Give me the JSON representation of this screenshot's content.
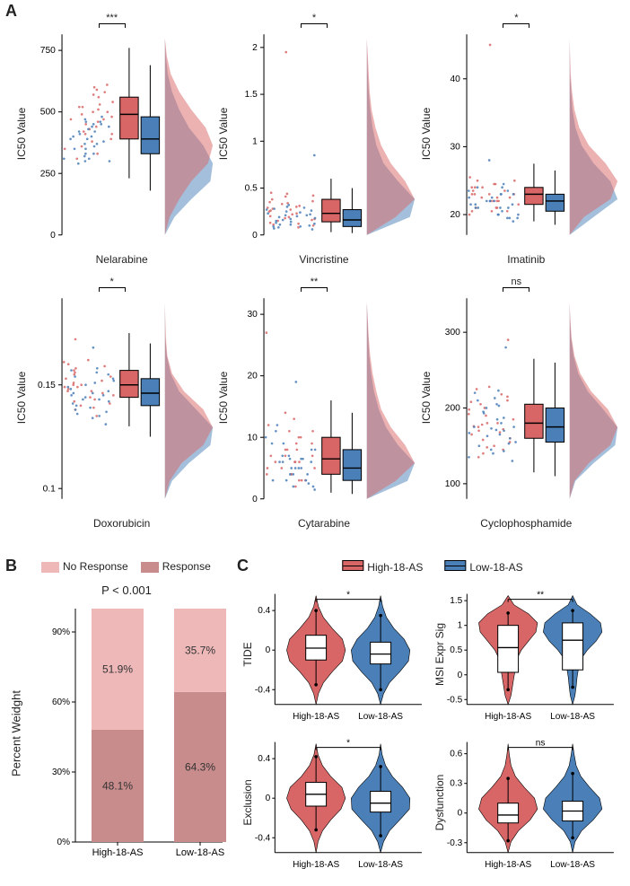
{
  "colors": {
    "red": "#d96666",
    "blue": "#4a7fb8",
    "lightred": "#eeb8b8",
    "darkred": "#c98c8c"
  },
  "panelA": {
    "label": "A",
    "ylabel": "IC50 Value",
    "drugs": [
      {
        "name": "Nelarabine",
        "sig": "***",
        "yticks": [
          0,
          250,
          500,
          750
        ],
        "ymax": 800,
        "high": {
          "q1": 390,
          "med": 490,
          "q3": 560,
          "lo": 230,
          "hi": 760
        },
        "low": {
          "q1": 330,
          "med": 390,
          "q3": 480,
          "lo": 180,
          "hi": 690
        },
        "jitter_high": [
          520,
          470,
          610,
          430,
          380,
          560,
          500,
          410,
          590,
          350,
          480,
          540,
          310,
          450,
          530,
          600,
          420,
          470,
          510,
          390,
          330,
          570,
          440,
          500,
          460,
          360,
          580,
          410,
          490,
          520
        ],
        "jitter_low": [
          400,
          350,
          450,
          300,
          420,
          370,
          480,
          310,
          390,
          440,
          330,
          460,
          290,
          410,
          360,
          470,
          320,
          430,
          380,
          450,
          300,
          400,
          350,
          420,
          370,
          460,
          310,
          390,
          440,
          330
        ],
        "density_high": [
          0,
          0.1,
          0.3,
          0.55,
          0.9,
          1.0,
          0.85,
          0.55,
          0.3,
          0.12,
          0.04,
          0
        ],
        "density_low": [
          0,
          0.2,
          0.55,
          0.95,
          1.0,
          0.8,
          0.5,
          0.3,
          0.15,
          0.06,
          0.02,
          0
        ]
      },
      {
        "name": "Vincristine",
        "sig": "*",
        "yticks": [
          0,
          0.5,
          1.0,
          1.5,
          2.0
        ],
        "ymax": 2.1,
        "high": {
          "q1": 0.14,
          "med": 0.23,
          "q3": 0.38,
          "lo": 0.03,
          "hi": 0.6
        },
        "low": {
          "q1": 0.09,
          "med": 0.16,
          "q3": 0.27,
          "lo": 0.02,
          "hi": 0.5
        },
        "jitter_high": [
          0.25,
          0.19,
          0.33,
          0.12,
          0.41,
          0.27,
          0.17,
          0.35,
          0.1,
          0.3,
          0.22,
          0.44,
          0.15,
          0.29,
          0.38,
          0.08,
          0.26,
          0.2,
          0.34,
          0.13,
          0.42,
          0.28,
          0.18,
          0.36,
          0.11,
          0.31,
          0.23,
          0.45,
          0.16,
          1.95
        ],
        "jitter_low": [
          0.18,
          0.11,
          0.24,
          0.07,
          0.29,
          0.15,
          0.21,
          0.09,
          0.26,
          0.13,
          0.19,
          0.32,
          0.06,
          0.22,
          0.28,
          0.1,
          0.17,
          0.25,
          0.08,
          0.2,
          0.14,
          0.3,
          0.12,
          0.23,
          0.09,
          0.27,
          0.16,
          0.21,
          0.11,
          0.85
        ],
        "density_high": [
          0,
          0.6,
          1.0,
          0.8,
          0.5,
          0.3,
          0.18,
          0.1,
          0.06,
          0.04,
          0.02,
          0
        ],
        "density_low": [
          0,
          0.9,
          1.0,
          0.65,
          0.35,
          0.2,
          0.12,
          0.07,
          0.04,
          0.02,
          0.01,
          0
        ]
      },
      {
        "name": "Imatinib",
        "sig": "*",
        "yticks": [
          20,
          30,
          40
        ],
        "ymax": 46,
        "ymin": 17,
        "high": {
          "q1": 21.5,
          "med": 23.0,
          "q3": 24.0,
          "lo": 19.0,
          "hi": 27.5
        },
        "low": {
          "q1": 20.5,
          "med": 22.0,
          "q3": 23.0,
          "lo": 18.5,
          "hi": 26.5
        },
        "jitter_high": [
          23,
          22,
          24,
          21,
          25,
          22.5,
          23.5,
          20.5,
          24.5,
          22,
          23,
          21.5,
          25.5,
          22.5,
          20,
          24,
          23,
          21,
          22,
          24.5,
          20.5,
          23.5,
          22,
          25,
          21,
          24,
          22.5,
          23,
          20.5,
          45
        ],
        "jitter_low": [
          22,
          21,
          23,
          20,
          24,
          21.5,
          22.5,
          19.5,
          23.5,
          21,
          22,
          20.5,
          24.5,
          21.5,
          19,
          23,
          22,
          20,
          21,
          23.5,
          19.5,
          22.5,
          21,
          24,
          20,
          23,
          21.5,
          22,
          19.5,
          28
        ],
        "density_high": [
          0,
          0.3,
          0.85,
          1.0,
          0.75,
          0.4,
          0.2,
          0.1,
          0.05,
          0.02,
          0.01,
          0
        ],
        "density_low": [
          0,
          0.5,
          1.0,
          0.85,
          0.5,
          0.25,
          0.12,
          0.06,
          0.03,
          0.01,
          0.005,
          0
        ]
      },
      {
        "name": "Doxorubicin",
        "sig": "*",
        "yticks": [
          0.1,
          0.15
        ],
        "ymax": 0.19,
        "ymin": 0.095,
        "high": {
          "q1": 0.144,
          "med": 0.15,
          "q3": 0.157,
          "lo": 0.13,
          "hi": 0.175
        },
        "low": {
          "q1": 0.14,
          "med": 0.146,
          "q3": 0.153,
          "lo": 0.125,
          "hi": 0.17
        },
        "jitter_high": [
          0.15,
          0.147,
          0.155,
          0.142,
          0.16,
          0.149,
          0.153,
          0.138,
          0.158,
          0.145,
          0.151,
          0.144,
          0.162,
          0.148,
          0.135,
          0.156,
          0.15,
          0.141,
          0.147,
          0.159,
          0.139,
          0.154,
          0.146,
          0.161,
          0.143,
          0.157,
          0.149,
          0.152,
          0.14,
          0.172
        ],
        "jitter_low": [
          0.146,
          0.143,
          0.151,
          0.138,
          0.156,
          0.145,
          0.149,
          0.134,
          0.154,
          0.141,
          0.147,
          0.14,
          0.158,
          0.144,
          0.131,
          0.152,
          0.146,
          0.137,
          0.143,
          0.155,
          0.135,
          0.15,
          0.142,
          0.157,
          0.139,
          0.153,
          0.145,
          0.148,
          0.136,
          0.168
        ],
        "density_high": [
          0,
          0.1,
          0.35,
          0.8,
          1.0,
          0.8,
          0.4,
          0.15,
          0.05,
          0.02,
          0.01,
          0
        ],
        "density_low": [
          0,
          0.15,
          0.5,
          0.95,
          1.0,
          0.65,
          0.3,
          0.12,
          0.04,
          0.01,
          0.005,
          0
        ]
      },
      {
        "name": "Cytarabine",
        "sig": "**",
        "yticks": [
          0,
          10,
          20,
          30
        ],
        "ymax": 32,
        "high": {
          "q1": 4.0,
          "med": 6.5,
          "q3": 10.0,
          "lo": 1.0,
          "hi": 16.0
        },
        "low": {
          "q1": 3.0,
          "med": 5.0,
          "q3": 8.0,
          "lo": 0.8,
          "hi": 14.0
        },
        "jitter_high": [
          6,
          4,
          9,
          3,
          11,
          7,
          5,
          13,
          2,
          8,
          6,
          10,
          4,
          7,
          12,
          3,
          9,
          5,
          8,
          11,
          4,
          6,
          14,
          5,
          7,
          3,
          10,
          8,
          6,
          27
        ],
        "jitter_low": [
          5,
          3,
          7,
          2,
          9,
          6,
          4,
          11,
          1.5,
          6.5,
          5,
          8,
          3,
          6,
          10,
          2,
          7,
          4,
          6.5,
          9,
          3,
          5,
          12,
          4,
          6,
          2.5,
          8,
          6.5,
          5,
          19
        ],
        "density_high": [
          0,
          0.6,
          1.0,
          0.8,
          0.5,
          0.3,
          0.2,
          0.12,
          0.07,
          0.04,
          0.02,
          0
        ],
        "density_low": [
          0,
          0.85,
          1.0,
          0.65,
          0.4,
          0.25,
          0.15,
          0.09,
          0.05,
          0.03,
          0.015,
          0
        ]
      },
      {
        "name": "Cyclophosphamide",
        "sig": "ns",
        "yticks": [
          100,
          200,
          300
        ],
        "ymax": 340,
        "ymin": 80,
        "high": {
          "q1": 160,
          "med": 180,
          "q3": 205,
          "lo": 115,
          "hi": 265
        },
        "low": {
          "q1": 155,
          "med": 175,
          "q3": 200,
          "lo": 110,
          "hi": 260
        },
        "jitter_high": [
          180,
          165,
          200,
          150,
          215,
          175,
          190,
          140,
          210,
          170,
          185,
          160,
          225,
          178,
          135,
          205,
          180,
          155,
          172,
          218,
          145,
          198,
          168,
          228,
          158,
          208,
          176,
          192,
          148,
          290
        ],
        "jitter_low": [
          175,
          160,
          195,
          145,
          210,
          170,
          185,
          135,
          205,
          165,
          180,
          155,
          220,
          173,
          130,
          200,
          175,
          150,
          167,
          213,
          140,
          193,
          163,
          223,
          153,
          203,
          171,
          187,
          143,
          280
        ],
        "density_high": [
          0,
          0.1,
          0.4,
          0.85,
          1.0,
          0.8,
          0.45,
          0.22,
          0.1,
          0.04,
          0.015,
          0
        ],
        "density_low": [
          0,
          0.12,
          0.5,
          0.95,
          1.0,
          0.7,
          0.38,
          0.18,
          0.08,
          0.03,
          0.01,
          0
        ]
      }
    ]
  },
  "panelB": {
    "label": "B",
    "legend": {
      "noresp": "No Response",
      "resp": "Response"
    },
    "pval": "P < 0.001",
    "ylabel": "Percent Weidght",
    "yticks": [
      "0%",
      "30%",
      "60%",
      "90%"
    ],
    "bars": [
      {
        "x": "High-18-AS",
        "resp": 48.1,
        "noresp": 51.9
      },
      {
        "x": "Low-18-AS",
        "resp": 64.3,
        "noresp": 35.7
      }
    ]
  },
  "panelC": {
    "label": "C",
    "legend": {
      "high": "High-18-AS",
      "low": "Low-18-AS"
    },
    "xlabels": [
      "High-18-AS",
      "Low-18-AS"
    ],
    "plots": [
      {
        "ylabel": "TIDE",
        "sig": "*",
        "yticks": [
          -0.4,
          0.0,
          0.4
        ],
        "ymin": -0.55,
        "ymax": 0.55,
        "high": {
          "q1": -0.1,
          "med": 0.02,
          "q3": 0.15,
          "lo": -0.35,
          "hi": 0.4,
          "shape": [
            0,
            0.08,
            0.25,
            0.55,
            0.9,
            1.0,
            0.9,
            0.55,
            0.25,
            0.08,
            0
          ]
        },
        "low": {
          "q1": -0.14,
          "med": -0.04,
          "q3": 0.08,
          "lo": -0.4,
          "hi": 0.35,
          "shape": [
            0,
            0.1,
            0.3,
            0.65,
            0.95,
            1.0,
            0.8,
            0.45,
            0.2,
            0.07,
            0
          ]
        }
      },
      {
        "ylabel": "MSI Expr Sig",
        "sig": "**",
        "yticks": [
          -0.5,
          0.0,
          0.5,
          1.0,
          1.5
        ],
        "ymin": -0.6,
        "ymax": 1.6,
        "high": {
          "q1": 0.05,
          "med": 0.55,
          "q3": 1.0,
          "lo": -0.3,
          "hi": 1.25,
          "shape": [
            0,
            0.1,
            0.15,
            0.2,
            0.25,
            0.3,
            0.45,
            0.7,
            0.95,
            1.0,
            0.7,
            0.2,
            0
          ]
        },
        "low": {
          "q1": 0.1,
          "med": 0.7,
          "q3": 1.05,
          "lo": -0.25,
          "hi": 1.3,
          "shape": [
            0,
            0.08,
            0.12,
            0.15,
            0.2,
            0.28,
            0.5,
            0.8,
            1.0,
            0.95,
            0.6,
            0.15,
            0
          ]
        }
      },
      {
        "ylabel": "Exclusion",
        "sig": "*",
        "yticks": [
          -0.4,
          0.0,
          0.4
        ],
        "ymin": -0.55,
        "ymax": 0.55,
        "high": {
          "q1": -0.08,
          "med": 0.04,
          "q3": 0.16,
          "lo": -0.32,
          "hi": 0.42,
          "shape": [
            0,
            0.07,
            0.22,
            0.5,
            0.85,
            1.0,
            0.88,
            0.5,
            0.22,
            0.07,
            0
          ]
        },
        "low": {
          "q1": -0.14,
          "med": -0.05,
          "q3": 0.07,
          "lo": -0.38,
          "hi": 0.32,
          "shape": [
            0,
            0.1,
            0.3,
            0.65,
            0.98,
            1.0,
            0.75,
            0.4,
            0.17,
            0.05,
            0
          ]
        }
      },
      {
        "ylabel": "Dysfunction",
        "sig": "ns",
        "yticks": [
          -0.3,
          0.0,
          0.3,
          0.6
        ],
        "ymin": -0.4,
        "ymax": 0.7,
        "high": {
          "q1": -0.1,
          "med": -0.02,
          "q3": 0.1,
          "lo": -0.28,
          "hi": 0.35,
          "shape": [
            0,
            0.1,
            0.35,
            0.75,
            1.0,
            0.9,
            0.55,
            0.25,
            0.1,
            0.04,
            0
          ]
        },
        "low": {
          "q1": -0.08,
          "med": 0.02,
          "q3": 0.12,
          "lo": -0.25,
          "hi": 0.4,
          "shape": [
            0,
            0.08,
            0.3,
            0.7,
            1.0,
            0.92,
            0.58,
            0.28,
            0.12,
            0.05,
            0
          ]
        }
      }
    ]
  }
}
